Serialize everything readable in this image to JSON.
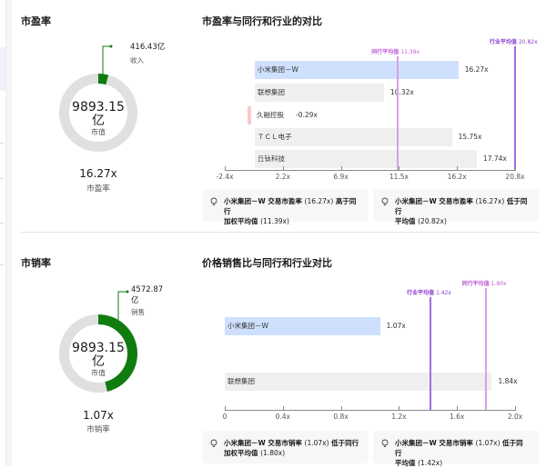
{
  "colors": {
    "green": "#107c10",
    "donut_track": "#e0e0e0",
    "primary_bar": "#cfe0ff",
    "neutral_bar": "#efefef",
    "negative_bar": "#f8c9cc",
    "industry_line": "#a46de0",
    "peer_line": "#d9a0e6",
    "industry_label": "#8a3fd1",
    "peer_label": "#c05bd6"
  },
  "pe_section": {
    "title": "市盈率",
    "donut": {
      "center_value": "9893.15",
      "center_unit": "亿",
      "center_label": "市值",
      "callout_value": "416.43亿",
      "callout_label": "收入",
      "fraction": 0.042
    },
    "ratio_value": "16.27x",
    "ratio_label": "市盈率",
    "chart_title": "市盈率与同行和行业的对比",
    "peer_avg_label": "同行平均值",
    "peer_avg_value": "11.39x",
    "industry_avg_label": "行业平均值",
    "industry_avg_value": "20.82x",
    "bars": [
      {
        "name": "小米集团－W",
        "value": 16.27,
        "value_label": "16.27x"
      },
      {
        "name": "联想集团",
        "value": 10.32,
        "value_label": "10.32x"
      },
      {
        "name": "久融控股",
        "value": -0.29,
        "value_label": "-0.29x"
      },
      {
        "name": "ＴＣＬ电子",
        "value": 15.75,
        "value_label": "15.75x"
      },
      {
        "name": "丘钛科技",
        "value": 17.74,
        "value_label": "17.74x"
      }
    ],
    "axis_ticks": [
      "-2.4x",
      "2.2x",
      "6.9x",
      "11.5x",
      "16.2x",
      "20.8x"
    ],
    "insights": [
      {
        "prefix": "小米集团－W 交易市盈率",
        "num": "(16.27x)",
        "mid": "高于同行",
        "line2": "加权平均值",
        "num2": "(11.39x)"
      },
      {
        "prefix": "小米集团－W 交易市盈率",
        "num": "(16.27x)",
        "mid": "低于同行",
        "line2": "平均值",
        "num2": "(20.82x)"
      }
    ]
  },
  "ps_section": {
    "title": "市销率",
    "donut": {
      "center_value": "9893.15",
      "center_unit": "亿",
      "center_label": "市值",
      "callout_value": "4572.87",
      "callout_unit": "亿",
      "callout_label": "销售",
      "fraction": 0.462
    },
    "ratio_value": "1.07x",
    "ratio_label": "市销率",
    "chart_title": "价格销售比与同行和行业对比",
    "industry_avg_label": "行业平均值",
    "industry_avg_value": "1.42x",
    "peer_avg_label": "同行平均值",
    "peer_avg_value": "1.80x",
    "bars": [
      {
        "name": "小米集团－W",
        "value": 1.07,
        "value_label": "1.07x"
      },
      {
        "name": "联想集团",
        "value": 1.84,
        "value_label": "1.84x"
      }
    ],
    "axis_ticks": [
      "0",
      "0.4x",
      "0.8x",
      "1.2x",
      "1.6x",
      "2.0x"
    ],
    "insights": [
      {
        "prefix": "小米集团－W 交易市销率",
        "num": "(1.07x)",
        "mid": "低于同行",
        "line2": "加权平均值",
        "num2": "(1.80x)"
      },
      {
        "prefix": "小米集团－W 交易市销率",
        "num": "(1.07x)",
        "mid": "低于同行",
        "line2": "平均值",
        "num2": "(1.42x)"
      }
    ]
  }
}
